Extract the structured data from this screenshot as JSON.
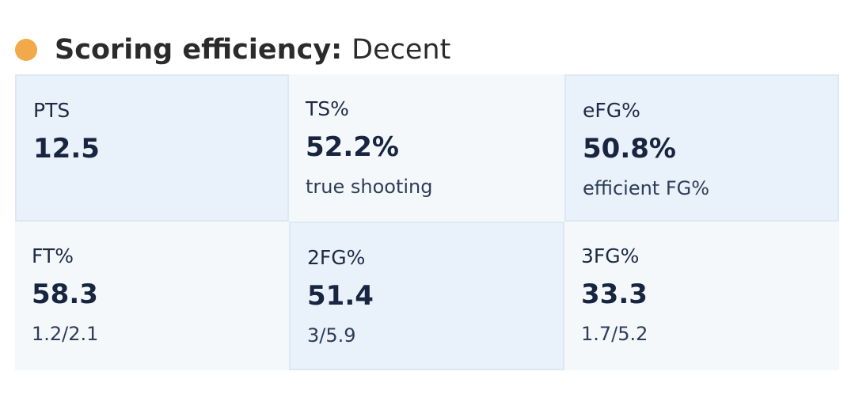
{
  "header": {
    "title": "Scoring efficiency:",
    "rating": "Decent"
  },
  "cells": [
    {
      "label": "PTS",
      "value": "12.5"
    },
    {
      "label": "TS%",
      "value": "52.2%",
      "note": "true shooting"
    },
    {
      "label": "eFG%",
      "value": "50.8%",
      "note": "efficient FG%"
    },
    {
      "label": "FT%",
      "value": "58.3",
      "note": "1.2/2.1"
    },
    {
      "label": "2FG%",
      "value": "51.4",
      "note": "3/5.9"
    },
    {
      "label": "3FG%",
      "value": "33.3",
      "note": "1.7/5.2"
    }
  ]
}
